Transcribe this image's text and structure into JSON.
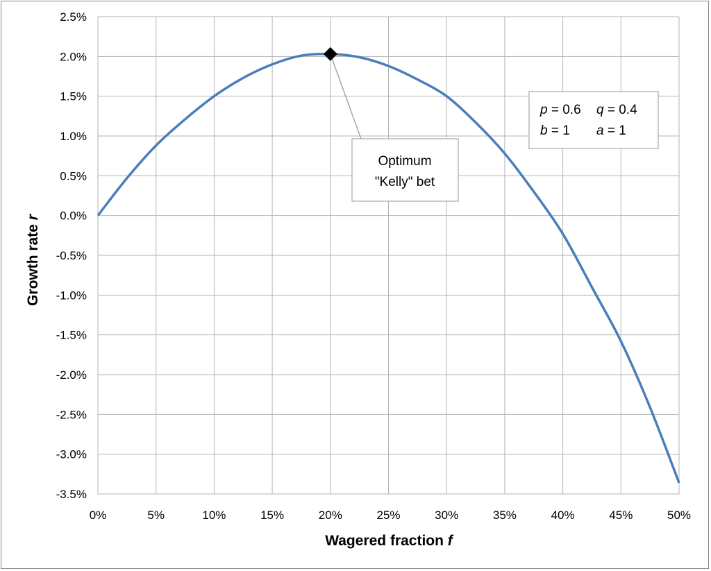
{
  "chart_data": {
    "type": "line",
    "xlabel": "Wagered fraction",
    "xlabel_var": "f",
    "ylabel": "Growth rate",
    "ylabel_var": "r",
    "xlim": [
      0,
      0.5
    ],
    "ylim": [
      -0.035,
      0.025
    ],
    "x_ticks": [
      0,
      0.05,
      0.1,
      0.15,
      0.2,
      0.25,
      0.3,
      0.35,
      0.4,
      0.45,
      0.5
    ],
    "x_tick_labels": [
      "0%",
      "5%",
      "10%",
      "15%",
      "20%",
      "25%",
      "30%",
      "35%",
      "40%",
      "45%",
      "50%"
    ],
    "y_ticks": [
      0.025,
      0.02,
      0.015,
      0.01,
      0.005,
      0,
      -0.005,
      -0.01,
      -0.015,
      -0.02,
      -0.025,
      -0.03,
      -0.035
    ],
    "y_tick_labels": [
      "2.5%",
      "2.0%",
      "1.5%",
      "1.0%",
      "0.5%",
      "0.0%",
      "-0.5%",
      "-1.0%",
      "-1.5%",
      "-2.0%",
      "-2.5%",
      "-3.0%",
      "-3.5%"
    ],
    "grid": true,
    "series": [
      {
        "color": "#4A7EBB",
        "x": [
          0,
          0.025,
          0.05,
          0.075,
          0.1,
          0.125,
          0.15,
          0.175,
          0.2,
          0.225,
          0.25,
          0.275,
          0.3,
          0.325,
          0.35,
          0.375,
          0.4,
          0.425,
          0.45,
          0.475,
          0.5
        ],
        "y": [
          0,
          0.0047,
          0.0088,
          0.0121,
          0.015,
          0.0173,
          0.019,
          0.0201,
          0.0203,
          0.0199,
          0.0188,
          0.0171,
          0.015,
          0.0117,
          0.0078,
          0.003,
          -0.0023,
          -0.009,
          -0.0158,
          -0.0241,
          -0.0336
        ]
      }
    ],
    "optimum_point": {
      "x": 0.2,
      "y": 0.0203
    },
    "annotation": {
      "line1": "Optimum",
      "line2": "\"Kelly\" bet"
    },
    "params_box": {
      "p_var": "p",
      "p_val": " = 0.6",
      "q_var": "q",
      "q_val": " = 0.4",
      "b_var": "b",
      "b_val": " = 1",
      "a_var": "a",
      "a_val": " = 1"
    },
    "colors": {
      "line": "#4A7EBB",
      "grid": "#B3B3B3",
      "marker": "#000000",
      "leader": "#A6A6A6"
    }
  }
}
